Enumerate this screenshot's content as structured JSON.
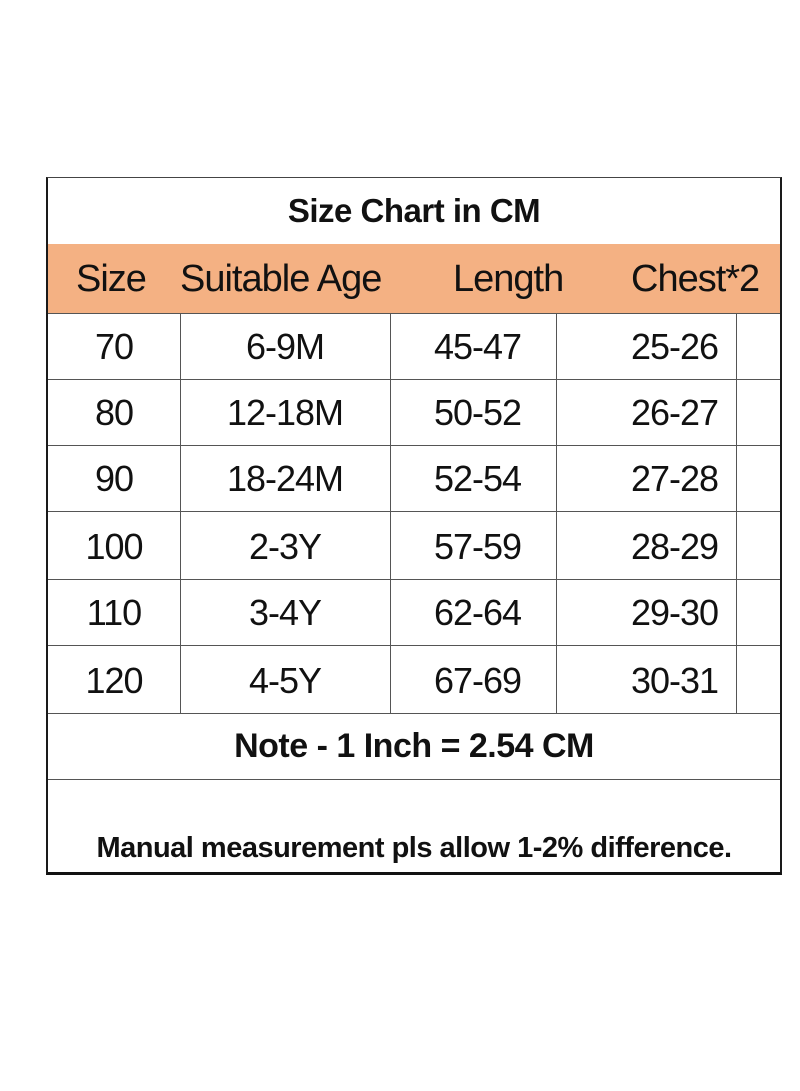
{
  "title": "Size Chart in CM",
  "header": {
    "colors": {
      "header_bg": "#f4b183"
    },
    "columns": [
      "Size",
      "Suitable Age",
      "Length",
      "Chest*2"
    ]
  },
  "rows": [
    {
      "size": "70",
      "age": "6-9M",
      "length": "45-47",
      "chest": "25-26"
    },
    {
      "size": "80",
      "age": "12-18M",
      "length": "50-52",
      "chest": "26-27"
    },
    {
      "size": "90",
      "age": "18-24M",
      "length": "52-54",
      "chest": "27-28"
    },
    {
      "size": "100",
      "age": "2-3Y",
      "length": "57-59",
      "chest": "28-29"
    },
    {
      "size": "110",
      "age": "3-4Y",
      "length": "62-64",
      "chest": "29-30"
    },
    {
      "size": "120",
      "age": "4-5Y",
      "length": "67-69",
      "chest": "30-31"
    }
  ],
  "note": "Note - 1 Inch = 2.54 CM",
  "disclaimer": "Manual measurement pls allow 1-2% difference."
}
